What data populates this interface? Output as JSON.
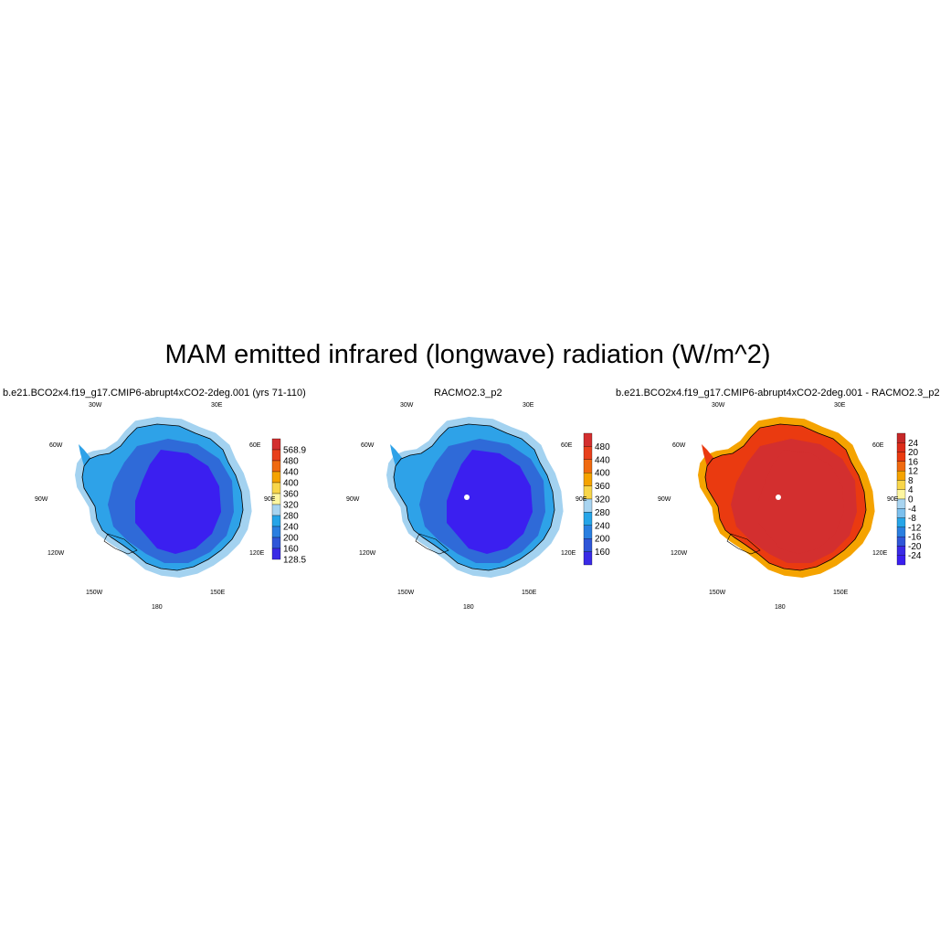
{
  "figure": {
    "title": "MAM emitted infrared (longwave) radiation (W/m^2)"
  },
  "panels": [
    {
      "title": "b.e21.BCO2x4.f19_g17.CMIP6-abrupt4xCO2-2deg.001 (yrs 71-110)",
      "colorbar": {
        "labels": [
          "568.9",
          "480",
          "440",
          "400",
          "360",
          "320",
          "280",
          "240",
          "200",
          "160",
          "128.5"
        ],
        "colors": [
          "#d32f2f",
          "#e8401c",
          "#f06a10",
          "#f5a300",
          "#f8d64a",
          "#fdf6a0",
          "#a8d4f0",
          "#26a5e8",
          "#2a7fe0",
          "#2f56d8",
          "#3a2be6"
        ]
      },
      "map_palette": {
        "outer": "#a3d2f0",
        "coast": "#2ea2e8",
        "mid": "#2f6ad8",
        "interior": "#3b1ff0"
      }
    },
    {
      "title": "RACMO2.3_p2",
      "colorbar": {
        "labels": [
          "480",
          "440",
          "400",
          "360",
          "320",
          "280",
          "240",
          "200",
          "160"
        ],
        "colors": [
          "#d32f2f",
          "#e8401c",
          "#f06a10",
          "#f5a300",
          "#f8d64a",
          "#a8d4f0",
          "#26a5e8",
          "#2a7fe0",
          "#2f56d8",
          "#3a2be6"
        ]
      },
      "map_palette": {
        "outer": "#a3d2f0",
        "coast": "#2ea2e8",
        "mid": "#2f6ad8",
        "interior": "#3b1ff0"
      }
    },
    {
      "title": "b.e21.BCO2x4.f19_g17.CMIP6-abrupt4xCO2-2deg.001 - RACMO2.3_p2",
      "colorbar": {
        "labels": [
          "24",
          "20",
          "16",
          "12",
          "8",
          "4",
          "0",
          "-4",
          "-8",
          "-12",
          "-16",
          "-20",
          "-24"
        ],
        "colors": [
          "#c62828",
          "#dd2c1a",
          "#ea3a10",
          "#f06a10",
          "#f5a300",
          "#f8d64a",
          "#fdf6a0",
          "#a8d4f0",
          "#7cc0ee",
          "#26a5e8",
          "#2a7fe0",
          "#2f56d8",
          "#3a2be6",
          "#3a1ff0"
        ]
      },
      "map_palette": {
        "outer": "#f5a300",
        "coast": "#ea3a10",
        "mid": "#d32f2f",
        "interior": "#d32f2f"
      }
    }
  ],
  "longitude_labels": [
    "30W",
    "30E",
    "60W",
    "60E",
    "90W",
    "90E",
    "120W",
    "120E",
    "150W",
    "150E",
    "180"
  ]
}
